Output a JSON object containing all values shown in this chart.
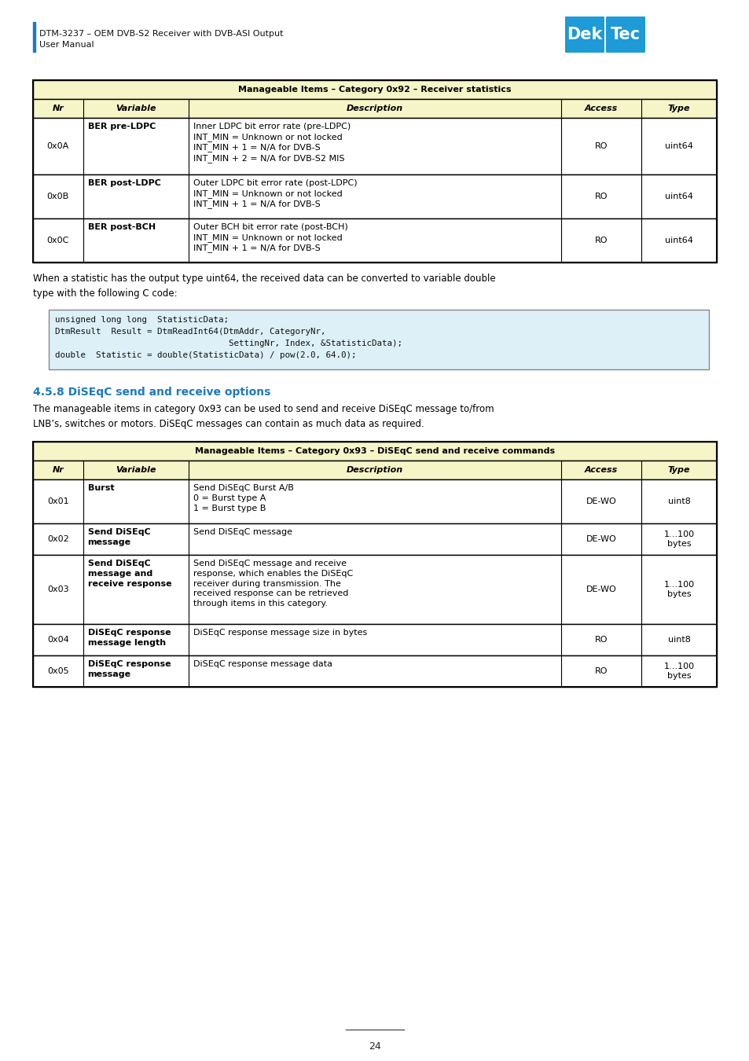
{
  "page_width": 9.54,
  "page_height": 13.5,
  "bg_color": "#ffffff",
  "header_line_color": "#1e7abf",
  "header_text1": "DTM-3237 – OEM DVB-S2 Receiver with DVB-ASI Output",
  "header_text2": "User Manual",
  "table1_title": "Manageable Items – Category 0x92 – Receiver statistics",
  "table1_header": [
    "Nr",
    "Variable",
    "Description",
    "Access",
    "Type"
  ],
  "table1_rows": [
    {
      "nr": "0x0A",
      "variable": "BER pre-LDPC",
      "description": "Inner LDPC bit error rate (pre-LDPC)\nINT_MIN = Unknown or not locked\nINT_MIN + 1 = N/A for DVB-S\nINT_MIN + 2 = N/A for DVB-S2 MIS",
      "access": "RO",
      "type": "uint64"
    },
    {
      "nr": "0x0B",
      "variable": "BER post-LDPC",
      "description": "Outer LDPC bit error rate (post-LDPC)\nINT_MIN = Unknown or not locked\nINT_MIN + 1 = N/A for DVB-S",
      "access": "RO",
      "type": "uint64"
    },
    {
      "nr": "0x0C",
      "variable": "BER post-BCH",
      "description": "Outer BCH bit error rate (post-BCH)\nINT_MIN = Unknown or not locked\nINT_MIN + 1 = N/A for DVB-S",
      "access": "RO",
      "type": "uint64"
    }
  ],
  "para1": "When a statistic has the output type uint64, the received data can be converted to variable double\ntype with the following C code:",
  "code_block_lines": [
    "unsigned long long  StatisticData;",
    "DtmResult  Result = DtmReadInt64(DtmAddr, CategoryNr,",
    "                                  SettingNr, Index, &StatisticData);",
    "double  Statistic = double(StatisticData) / pow(2.0, 64.0);"
  ],
  "section_title": "4.5.8 DiSEqC send and receive options",
  "para2": "The manageable items in category 0x93 can be used to send and receive DiSEqC message to/from\nLNB’s, switches or motors. DiSEqC messages can contain as much data as required.",
  "table2_title": "Manageable Items – Category 0x93 – DiSEqC send and receive commands",
  "table2_header": [
    "Nr",
    "Variable",
    "Description",
    "Access",
    "Type"
  ],
  "table2_rows": [
    {
      "nr": "0x01",
      "variable": "Burst",
      "description": "Send DiSEqC Burst A/B\n0 = Burst type A\n1 = Burst type B",
      "access": "DE-WO",
      "type": "uint8"
    },
    {
      "nr": "0x02",
      "variable": "Send DiSEqC\nmessage",
      "description": "Send DiSEqC message",
      "access": "DE-WO",
      "type": "1…100\nbytes"
    },
    {
      "nr": "0x03",
      "variable": "Send DiSEqC\nmessage and\nreceive response",
      "description": "Send DiSEqC message and receive\nresponse, which enables the DiSEqC\nreceiver during transmission. The\nreceived response can be retrieved\nthrough items in this category.",
      "access": "DE-WO",
      "type": "1…100\nbytes"
    },
    {
      "nr": "0x04",
      "variable": "DiSEqC response\nmessage length",
      "description": "DiSEqC response message size in bytes",
      "access": "RO",
      "type": "uint8"
    },
    {
      "nr": "0x05",
      "variable": "DiSEqC response\nmessage",
      "description": "DiSEqC response message data",
      "access": "RO",
      "type": "1…100\nbytes"
    }
  ],
  "page_number": "24",
  "table_header_bg": "#f5f5c8",
  "table_title_bg": "#f5f5c8",
  "table_border_color": "#000000",
  "code_bg": "#ddf0f8",
  "section_color": "#1e7abf",
  "logo_color": "#1e9ad6"
}
